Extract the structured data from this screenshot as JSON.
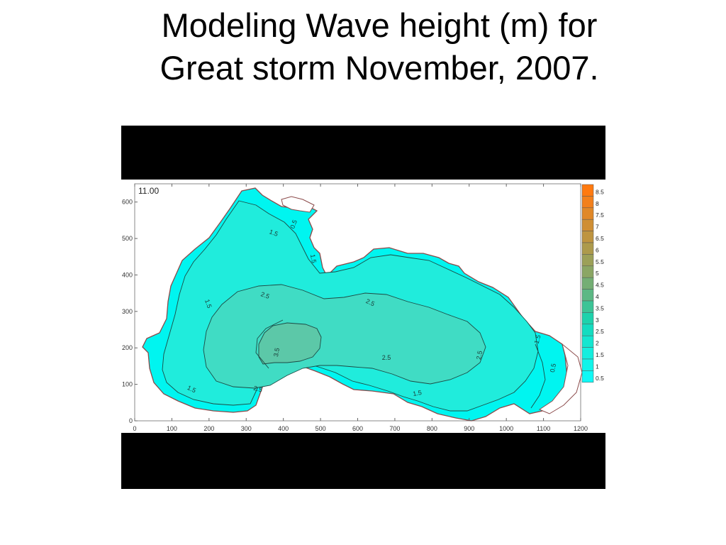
{
  "slide": {
    "title_line1": "Modeling Wave height (m) for",
    "title_line2": "Great storm November, 2007."
  },
  "map": {
    "time_label": "11.00",
    "x_ticks": [
      "0",
      "100",
      "200",
      "300",
      "400",
      "500",
      "600",
      "700",
      "800",
      "900",
      "1000",
      "1100",
      "1200"
    ],
    "y_ticks": [
      "0",
      "100",
      "200",
      "300",
      "400",
      "500",
      "600"
    ],
    "contour_labels": [
      "0.5",
      "1.5",
      "1.5",
      "1.5",
      "1.5",
      "2.5",
      "2.5",
      "2.5",
      "2.5",
      "3.5",
      "2.5",
      "1.5",
      "1.5",
      "0.5"
    ],
    "colors": {
      "sea_shallow": "#00f5f0",
      "sea_1": "#20ecdc",
      "sea_2": "#40dcc4",
      "sea_3": "#5cc8a8",
      "coast": "#8b4a4a"
    }
  },
  "legend": {
    "values": [
      "8.5",
      "8",
      "7.5",
      "7",
      "6.5",
      "6",
      "5.5",
      "5",
      "4.5",
      "4",
      "3.5",
      "3",
      "2.5",
      "2",
      "1.5",
      "1",
      "0.5"
    ],
    "colors": [
      "#ff7a10",
      "#f2801c",
      "#e08828",
      "#cf8e34",
      "#be9440",
      "#ad9a4c",
      "#9ca058",
      "#8ba664",
      "#74ae74",
      "#5cb884",
      "#3cc496",
      "#1ed2ac",
      "#14dcc0",
      "#14e6d0",
      "#14eede",
      "#10f4ea",
      "#10f8f6"
    ]
  }
}
